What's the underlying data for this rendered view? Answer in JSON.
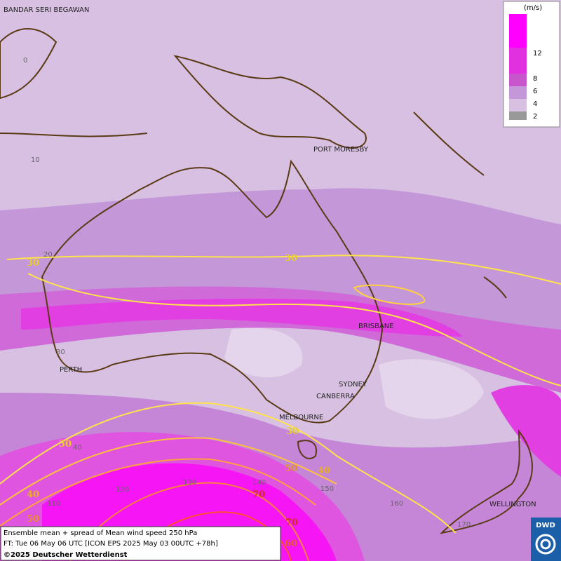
{
  "cities": [
    "BANDAR SERI BEGAWAN",
    "PORT MORESBY",
    "BRISBANE",
    "PERTH",
    "SYDNEY",
    "CANBERRA",
    "MELBOURNE",
    "WELLINGTON"
  ],
  "grid_labels": [
    "0",
    "10",
    "20",
    "30",
    "40",
    "110",
    "120",
    "130",
    "140",
    "150",
    "160",
    "170"
  ],
  "contour_labels": [
    "30",
    "30",
    "30",
    "30",
    "40",
    "40",
    "50",
    "50",
    "60",
    "70",
    "70"
  ],
  "legend": {
    "unit": "(m/s)",
    "ticks": [
      "12",
      "8",
      "6",
      "4",
      "2"
    ]
  },
  "info": {
    "line1": "Ensemble mean + spread of Mean wind speed 250 hPa",
    "line2": "FT: Tue 06 May 06 UTC [ICON EPS 2025 May 03 00UTC +78h]",
    "line3": "©2025 Deutscher Wetterdienst"
  },
  "logo": "DWD"
}
